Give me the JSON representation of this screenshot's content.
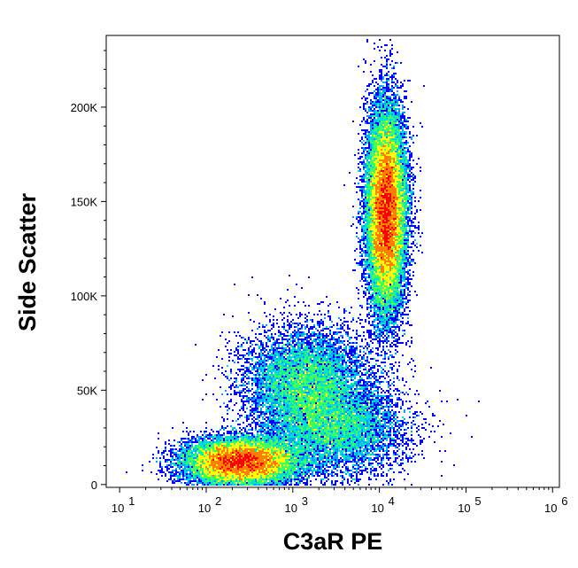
{
  "chart_data": {
    "type": "scatter",
    "subtype": "flow-cytometry-density-dot-plot",
    "title": "",
    "xlabel": "C3aR PE",
    "ylabel": "Side Scatter",
    "x_scale": "log",
    "xlim": [
      7,
      1200000
    ],
    "ylim": [
      -1500,
      238000
    ],
    "x_ticks": [
      {
        "value": 10,
        "base": "10",
        "exp": "1"
      },
      {
        "value": 100,
        "base": "10",
        "exp": "2"
      },
      {
        "value": 1000,
        "base": "10",
        "exp": "3"
      },
      {
        "value": 10000,
        "base": "10",
        "exp": "4"
      },
      {
        "value": 100000,
        "base": "10",
        "exp": "5"
      },
      {
        "value": 1000000,
        "base": "10",
        "exp": "6"
      }
    ],
    "y_ticks": [
      {
        "value": 0,
        "label": "0"
      },
      {
        "value": 50000,
        "label": "50K"
      },
      {
        "value": 100000,
        "label": "100K"
      },
      {
        "value": 150000,
        "label": "150K"
      },
      {
        "value": 200000,
        "label": "200K"
      }
    ],
    "grid": false,
    "legend": "none",
    "density_colormap": [
      "#0000ff",
      "#00a0ff",
      "#00e0d0",
      "#40ff60",
      "#ffff00",
      "#ff8000",
      "#ff0000"
    ],
    "populations": [
      {
        "x_center": 250,
        "y_center": 12000,
        "x_spread_log10": 0.32,
        "y_spread": 6000,
        "weight": 0.3
      },
      {
        "x_center": 12000,
        "y_center": 145000,
        "x_spread_log10": 0.11,
        "y_spread": 26000,
        "weight": 0.44
      },
      {
        "x_center": 1400,
        "y_center": 55000,
        "x_spread_log10": 0.35,
        "y_spread": 14000,
        "weight": 0.14
      },
      {
        "x_center": 3000,
        "y_center": 30000,
        "x_spread_log10": 0.4,
        "y_spread": 12000,
        "weight": 0.12
      }
    ]
  }
}
